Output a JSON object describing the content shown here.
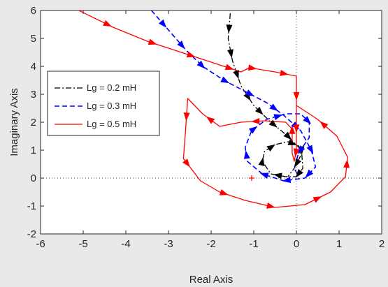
{
  "chart_data": {
    "type": "line",
    "title": "",
    "xlabel": "Real Axis",
    "ylabel": "Imaginary Axis",
    "xlim": [
      -6,
      2
    ],
    "ylim": [
      -2,
      6
    ],
    "xticks": [
      -6,
      -5,
      -4,
      -3,
      -2,
      -1,
      0,
      1,
      2
    ],
    "yticks": [
      -2,
      -1,
      0,
      1,
      2,
      3,
      4,
      5,
      6
    ],
    "legend_position": "top-left",
    "grid": false,
    "crosshair_lines": "dotted lines at x = 0 and y = 0",
    "marker": {
      "x": -1.05,
      "y": 0,
      "symbol": "+",
      "color": "#ff0000"
    },
    "series": [
      {
        "name": "Lg = 0.2 mH",
        "color": "#000000",
        "linestyle": "dash-dot",
        "points": [
          [
            -1.55,
            5.9
          ],
          [
            -1.6,
            5.0
          ],
          [
            -1.5,
            4.2
          ],
          [
            -1.3,
            3.3
          ],
          [
            -1.0,
            2.6
          ],
          [
            -0.6,
            2.0
          ],
          [
            -0.2,
            1.5
          ],
          [
            0.12,
            1.0
          ],
          [
            0.15,
            0.35
          ],
          [
            0.0,
            0.05
          ],
          [
            -0.25,
            0.05
          ],
          [
            -0.6,
            0.15
          ],
          [
            -0.8,
            0.6
          ],
          [
            -0.75,
            0.95
          ],
          [
            -0.5,
            1.2
          ],
          [
            -0.2,
            1.3
          ],
          [
            0.05,
            1.15
          ],
          [
            0.1,
            0.8
          ],
          [
            -0.05,
            0.35
          ],
          [
            -0.2,
            0.05
          ]
        ]
      },
      {
        "name": "Lg = 0.3 mH",
        "color": "#0000ff",
        "linestyle": "dashed",
        "points": [
          [
            -3.4,
            6.0
          ],
          [
            -3.0,
            5.3
          ],
          [
            -2.6,
            4.6
          ],
          [
            -2.2,
            4.0
          ],
          [
            -1.7,
            3.5
          ],
          [
            -1.2,
            3.1
          ],
          [
            -0.7,
            2.7
          ],
          [
            -0.3,
            2.25
          ],
          [
            0.1,
            1.7
          ],
          [
            0.35,
            1.0
          ],
          [
            0.45,
            0.4
          ],
          [
            0.2,
            0.0
          ],
          [
            -0.3,
            -0.1
          ],
          [
            -0.8,
            0.15
          ],
          [
            -1.15,
            0.6
          ],
          [
            -1.2,
            1.1
          ],
          [
            -1.05,
            1.7
          ],
          [
            -0.7,
            2.1
          ],
          [
            -0.25,
            2.3
          ],
          [
            0.1,
            2.3
          ],
          [
            0.3,
            2.0
          ],
          [
            0.3,
            1.45
          ],
          [
            0.05,
            0.9
          ],
          [
            -0.05,
            0.35
          ],
          [
            0.05,
            0.05
          ]
        ]
      },
      {
        "name": "Lg = 0.5 mH",
        "color": "#ff0000",
        "linestyle": "solid",
        "points": [
          [
            -5.1,
            6.0
          ],
          [
            -4.3,
            5.4
          ],
          [
            -3.5,
            4.9
          ],
          [
            -2.7,
            4.5
          ],
          [
            -2.0,
            4.15
          ],
          [
            -1.3,
            3.8
          ],
          [
            -1.1,
            3.95
          ],
          [
            -0.5,
            3.8
          ],
          [
            0.0,
            3.65
          ],
          [
            0.0,
            2.6
          ],
          [
            0.0,
            1.6
          ],
          [
            0.0,
            1.0
          ],
          [
            -0.05,
            0.6
          ],
          [
            -0.1,
            0.9
          ],
          [
            -0.1,
            1.3
          ],
          [
            -0.1,
            1.75
          ],
          [
            -0.25,
            2.0
          ],
          [
            -0.75,
            2.05
          ],
          [
            -1.3,
            2.0
          ],
          [
            -1.8,
            1.85
          ],
          [
            -2.2,
            2.3
          ],
          [
            -2.55,
            2.85
          ],
          [
            -2.6,
            1.7
          ],
          [
            -2.65,
            0.7
          ],
          [
            -2.25,
            -0.1
          ],
          [
            -1.8,
            -0.5
          ],
          [
            -1.2,
            -0.8
          ],
          [
            -0.5,
            -1.05
          ],
          [
            0.2,
            -0.95
          ],
          [
            0.8,
            -0.5
          ],
          [
            1.15,
            0.05
          ],
          [
            1.2,
            0.75
          ],
          [
            0.95,
            1.5
          ],
          [
            0.5,
            2.1
          ],
          [
            0.0,
            2.6
          ]
        ]
      }
    ],
    "arrow_positions": {
      "Lg = 0.2 mH": [
        0.05,
        0.13,
        0.2,
        0.28,
        0.34,
        0.4,
        0.46,
        0.52,
        0.6,
        0.67,
        0.74,
        0.8,
        0.87,
        0.95
      ],
      "Lg = 0.3 mH": [
        0.04,
        0.1,
        0.16,
        0.22,
        0.28,
        0.34,
        0.4,
        0.46,
        0.52,
        0.57,
        0.62,
        0.68,
        0.74,
        0.8,
        0.87,
        0.94
      ],
      "Lg = 0.5 mH": [
        0.04,
        0.1,
        0.15,
        0.2,
        0.23,
        0.27,
        0.31,
        0.35,
        0.38,
        0.43,
        0.48,
        0.54,
        0.6,
        0.66,
        0.72,
        0.78,
        0.84,
        0.9,
        0.96
      ]
    }
  }
}
